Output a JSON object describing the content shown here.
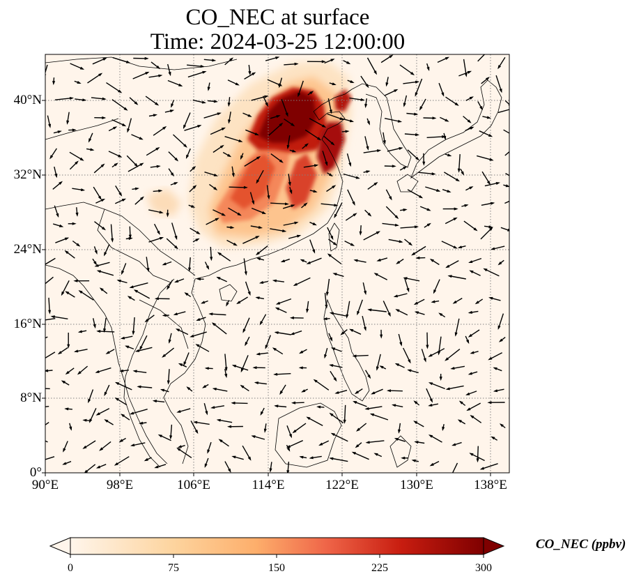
{
  "title_line1": "CO_NEC at surface",
  "title_line2": "Time: 2024-03-25 12:00:00",
  "lat_ticks": [
    "40°N",
    "32°N",
    "24°N",
    "16°N",
    "8°N",
    "0°"
  ],
  "lon_ticks": [
    "90°E",
    "98°E",
    "106°E",
    "114°E",
    "122°E",
    "130°E",
    "138°E"
  ],
  "colorbar": {
    "label": "CO_NEC (ppbv)",
    "ticks": [
      "0",
      "75",
      "150",
      "225",
      "300"
    ],
    "min": 0,
    "max": 300,
    "extend": "both",
    "colormap": [
      "#fff5eb",
      "#fdd49e",
      "#fdbb84",
      "#ef6548",
      "#d7301f",
      "#7f0000"
    ]
  },
  "map": {
    "projection": "PlateCarree",
    "lon_range": [
      90,
      140
    ],
    "lat_range": [
      0,
      45
    ],
    "gridlines": "dotted",
    "colors": {
      "background": "#fff5eb",
      "coast": "#000000",
      "grid": "#808080",
      "arrow": "#000000"
    }
  }
}
